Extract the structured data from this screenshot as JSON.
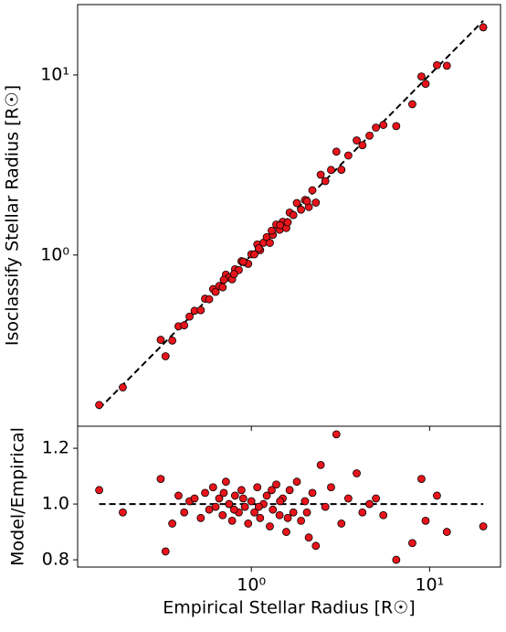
{
  "chart_data": [
    {
      "type": "scatter",
      "ylabel": "Isoclassify Stellar Radius [R☉]",
      "color": "#e8141b",
      "log_x": true,
      "log_y": true,
      "xlim": [
        0.106,
        25
      ],
      "ylim": [
        0.112,
        24.6
      ],
      "yticks": [
        {
          "value": 1,
          "label": "10⁰"
        },
        {
          "value": 10,
          "label": "10¹"
        }
      ],
      "reference_line": {
        "x": [
          0.14,
          20
        ],
        "y": [
          0.14,
          20
        ]
      },
      "x": [
        0.14,
        0.19,
        0.31,
        0.33,
        0.36,
        0.39,
        0.42,
        0.45,
        0.48,
        0.52,
        0.55,
        0.58,
        0.61,
        0.63,
        0.66,
        0.69,
        0.72,
        0.75,
        0.78,
        0.81,
        0.85,
        0.88,
        0.92,
        0.96,
        1.0,
        1.04,
        1.08,
        1.12,
        1.17,
        1.22,
        1.27,
        1.32,
        1.38,
        1.44,
        1.5,
        1.57,
        1.64,
        1.72,
        1.8,
        1.9,
        2.0,
        2.1,
        2.2,
        2.3,
        2.45,
        2.6,
        2.8,
        3.0,
        3.2,
        3.5,
        3.9,
        4.2,
        4.6,
        5.0,
        5.5,
        6.5,
        8.0,
        9.0,
        9.5,
        11.0,
        12.5,
        20.0,
        0.7,
        0.9,
        1.1,
        1.3,
        1.6,
        2.05,
        0.8,
        1.45
      ],
      "values": [
        0.147,
        0.184,
        0.338,
        0.274,
        0.335,
        0.402,
        0.407,
        0.455,
        0.49,
        0.494,
        0.572,
        0.568,
        0.647,
        0.624,
        0.673,
        0.662,
        0.778,
        0.75,
        0.733,
        0.834,
        0.825,
        0.924,
        0.911,
        0.893,
        1.01,
        1.009,
        1.145,
        1.064,
        1.17,
        1.257,
        1.168,
        1.294,
        1.477,
        1.382,
        1.53,
        1.413,
        1.722,
        1.668,
        1.944,
        1.786,
        2.02,
        1.848,
        2.288,
        1.955,
        2.793,
        2.574,
        2.968,
        3.75,
        2.976,
        3.57,
        4.329,
        4.074,
        4.6,
        5.1,
        5.28,
        5.2,
        6.88,
        9.81,
        8.93,
        11.33,
        11.25,
        18.4,
        0.728,
        0.918,
        1.089,
        1.365,
        1.52,
        1.989,
        0.784,
        1.465
      ]
    },
    {
      "type": "scatter",
      "xlabel": "Empirical Stellar Radius [R☉]",
      "ylabel": "Model/Empirical",
      "color": "#e8141b",
      "log_x": true,
      "log_y": false,
      "xlim": [
        0.106,
        25
      ],
      "ylim": [
        0.774,
        1.279
      ],
      "xticks": [
        {
          "value": 1,
          "label": "10⁰"
        },
        {
          "value": 10,
          "label": "10¹"
        }
      ],
      "yticks": [
        0.8,
        {
          "value": 1,
          "label": "1.0"
        },
        1.2
      ],
      "reference_line": {
        "x": [
          0.14,
          20
        ],
        "y": [
          1,
          1
        ]
      },
      "x": [
        0.14,
        0.19,
        0.31,
        0.33,
        0.36,
        0.39,
        0.42,
        0.45,
        0.48,
        0.52,
        0.55,
        0.58,
        0.61,
        0.63,
        0.66,
        0.69,
        0.72,
        0.75,
        0.78,
        0.81,
        0.85,
        0.88,
        0.92,
        0.96,
        1.0,
        1.04,
        1.08,
        1.12,
        1.17,
        1.22,
        1.27,
        1.32,
        1.38,
        1.44,
        1.5,
        1.57,
        1.64,
        1.72,
        1.8,
        1.9,
        2.0,
        2.1,
        2.2,
        2.3,
        2.45,
        2.6,
        2.8,
        3.0,
        3.2,
        3.5,
        3.9,
        4.2,
        4.6,
        5.0,
        5.5,
        6.5,
        8.0,
        9.0,
        9.5,
        11.0,
        12.5,
        20.0,
        0.7,
        0.9,
        1.1,
        1.3,
        1.6,
        2.05,
        0.8,
        1.45
      ],
      "values": [
        1.05,
        0.97,
        1.09,
        0.83,
        0.93,
        1.03,
        0.97,
        1.01,
        1.02,
        0.95,
        1.04,
        0.98,
        1.06,
        0.99,
        1.02,
        0.96,
        1.08,
        1.0,
        0.94,
        1.03,
        0.97,
        1.05,
        0.99,
        0.93,
        1.01,
        0.97,
        1.06,
        0.95,
        1.0,
        1.03,
        0.92,
        0.98,
        1.07,
        0.96,
        1.02,
        0.9,
        1.05,
        0.97,
        1.08,
        0.94,
        1.01,
        0.88,
        1.04,
        0.85,
        1.14,
        0.99,
        1.06,
        1.25,
        0.93,
        1.02,
        1.11,
        0.97,
        1.0,
        1.02,
        0.96,
        0.8,
        0.86,
        1.09,
        0.94,
        1.03,
        0.9,
        0.92,
        1.04,
        1.02,
        0.99,
        1.05,
        0.95,
        0.97,
        0.98,
        1.01
      ]
    }
  ]
}
